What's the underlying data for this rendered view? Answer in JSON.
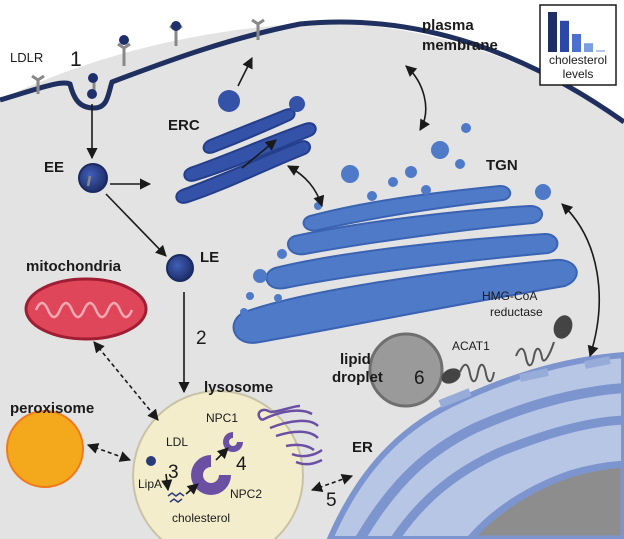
{
  "labels": {
    "ldlr": "LDLR",
    "plasma_membrane_line1": "plasma",
    "plasma_membrane_line2": "membrane",
    "erc": "ERC",
    "ee": "EE",
    "le": "LE",
    "tgn": "TGN",
    "mitochondria": "mitochondria",
    "peroxisome": "peroxisome",
    "lysosome": "lysosome",
    "lipid_droplet_line1": "lipid",
    "lipid_droplet_line2": "droplet",
    "hmg_coa_line1": "HMG-CoA",
    "hmg_coa_line2": "reductase",
    "acat1": "ACAT1",
    "er": "ER",
    "ldl": "LDL",
    "lipa": "LipA",
    "npc1": "NPC1",
    "npc2": "NPC2",
    "cholesterol": "cholesterol"
  },
  "steps": {
    "s1": "1",
    "s2": "2",
    "s3": "3",
    "s4": "4",
    "s5": "5",
    "s6": "6"
  },
  "legend": {
    "title_line1": "cholesterol",
    "title_line2": "levels",
    "levels": [
      1.0,
      0.78,
      0.45,
      0.22,
      0.05
    ],
    "colors": [
      "#1e2f66",
      "#2c48a6",
      "#4b70cf",
      "#7b9de2",
      "#b3c7ef"
    ]
  },
  "colors": {
    "cytoplasm": "#e2e2e2",
    "membrane": "#1f2f5f",
    "erc": "#3452a8",
    "tgn": "#4f7ac8",
    "er": "#98acd9",
    "nucleus": "#8d8d8d",
    "mitochondria": "#e0465a",
    "peroxisome": "#f4a91c",
    "lysosome": "#f3edcc",
    "npc": "#6b4fa3",
    "lipid_droplet": "#9a9a9a"
  }
}
